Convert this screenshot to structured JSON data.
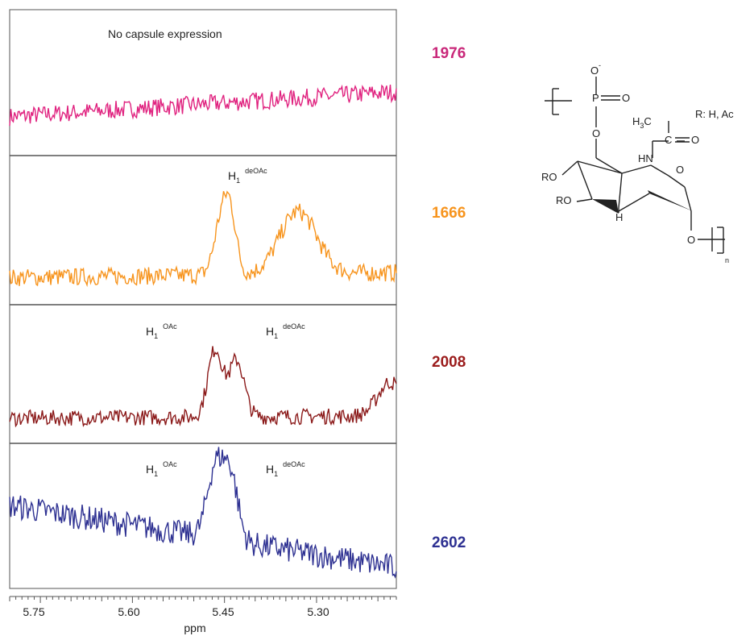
{
  "chart_data": {
    "type": "line",
    "x_axis": {
      "label": "ppm",
      "ticks": [
        "5.75",
        "5.60",
        "5.45",
        "5.30"
      ],
      "tick_values": [
        5.75,
        5.6,
        5.45,
        5.3
      ],
      "xlim": [
        5.8,
        5.17
      ],
      "reversed": true
    },
    "panels": [
      {
        "strain": "1976",
        "color": "#e0227f",
        "annotations": [
          {
            "text": "No capsule expression",
            "sub": "",
            "sup": ""
          }
        ],
        "profile": {
          "baseline": 0.18,
          "slope": 0.22,
          "noise": 0.08,
          "peaks": []
        }
      },
      {
        "strain": "1666",
        "color": "#f7941d",
        "annotations": [
          {
            "text": "H",
            "sub": "1",
            "sup": "deOAc"
          }
        ],
        "profile": {
          "baseline": 0.1,
          "slope": 0.04,
          "noise": 0.07,
          "peaks": [
            {
              "x": 5.455,
              "height": 0.42,
              "width": 0.012
            },
            {
              "x": 5.44,
              "height": 0.4,
              "width": 0.01
            },
            {
              "x": 5.33,
              "height": 0.5,
              "width": 0.03
            }
          ]
        }
      },
      {
        "strain": "2008",
        "color": "#8b1a1a",
        "annotations": [
          {
            "text": "H",
            "sub": "1",
            "sup": "OAc"
          },
          {
            "text": "H",
            "sub": "1",
            "sup": "deOAc"
          }
        ],
        "profile": {
          "baseline": 0.08,
          "slope": 0.02,
          "noise": 0.07,
          "peaks": [
            {
              "x": 5.465,
              "height": 0.6,
              "width": 0.012
            },
            {
              "x": 5.43,
              "height": 0.5,
              "width": 0.012
            },
            {
              "x": 5.18,
              "height": 0.3,
              "width": 0.02
            }
          ]
        }
      },
      {
        "strain": "2602",
        "color": "#2e3192",
        "annotations": [
          {
            "text": "H",
            "sub": "1",
            "sup": "OAc"
          },
          {
            "text": "H",
            "sub": "1",
            "sup": "deOAc"
          }
        ],
        "profile": {
          "baseline": 0.58,
          "slope": -0.48,
          "noise": 0.1,
          "peaks": [
            {
              "x": 5.465,
              "height": 0.55,
              "width": 0.013
            },
            {
              "x": 5.44,
              "height": 0.5,
              "width": 0.012
            }
          ]
        }
      }
    ]
  },
  "structure": {
    "labels": {
      "o_minus": "O",
      "charge": "-",
      "p": "P",
      "o_dbl": "O",
      "o_link": "O",
      "h3c": "H",
      "h3c_sub": "3",
      "h3c_c": "C",
      "c_carbonyl": "C",
      "o_carbonyl": "O",
      "hn": "HN",
      "ring_o": "O",
      "ro1": "RO",
      "ro2": "RO",
      "h_ring": "H",
      "o_glyc": "O",
      "n_sub": "n"
    },
    "r_group": "R: H, Ac"
  }
}
